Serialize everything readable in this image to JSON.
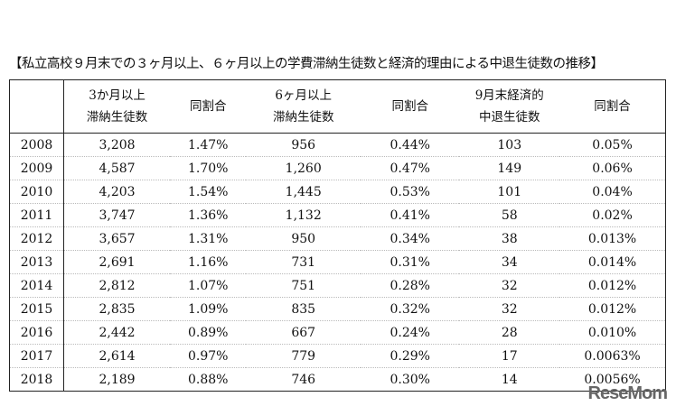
{
  "title": "【私立高校９月末での３ヶ月以上、６ヶ月以上の学費滞納生徒数と経済的理由による中退生徒数の推移】",
  "headers": [
    "",
    "3か月以上\n滞納生徒数",
    "同割合",
    "6ヶ月以上\n滞納生徒数",
    "同割合",
    "9月末経済的\n中退生徒数",
    "同割合"
  ],
  "rows": [
    [
      "2008",
      "3,208",
      "1.47%",
      "956",
      "0.44%",
      "103",
      "0.05%"
    ],
    [
      "2009",
      "4,587",
      "1.70%",
      "1,260",
      "0.47%",
      "149",
      "0.06%"
    ],
    [
      "2010",
      "4,203",
      "1.54%",
      "1,445",
      "0.53%",
      "101",
      "0.04%"
    ],
    [
      "2011",
      "3,747",
      "1.36%",
      "1,132",
      "0.41%",
      "58",
      "0.02%"
    ],
    [
      "2012",
      "3,657",
      "1.31%",
      "950",
      "0.34%",
      "38",
      "0.013%"
    ],
    [
      "2013",
      "2,691",
      "1.16%",
      "731",
      "0.31%",
      "34",
      "0.014%"
    ],
    [
      "2014",
      "2,812",
      "1.07%",
      "751",
      "0.28%",
      "32",
      "0.012%"
    ],
    [
      "2015",
      "2,835",
      "1.09%",
      "835",
      "0.32%",
      "32",
      "0.012%"
    ],
    [
      "2016",
      "2,442",
      "0.89%",
      "667",
      "0.24%",
      "28",
      "0.010%"
    ],
    [
      "2017",
      "2,614",
      "0.97%",
      "779",
      "0.29%",
      "17",
      "0.0063%"
    ],
    [
      "2018",
      "2,189",
      "0.88%",
      "746",
      "0.30%",
      "14",
      "0.0056%"
    ]
  ],
  "watermark": "ReseMom"
}
